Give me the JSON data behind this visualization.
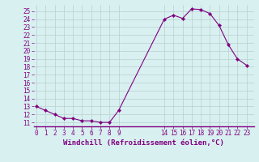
{
  "x": [
    0,
    1,
    2,
    3,
    4,
    5,
    6,
    7,
    8,
    9,
    14,
    15,
    16,
    17,
    18,
    19,
    20,
    21,
    22,
    23
  ],
  "y": [
    13,
    12.5,
    12,
    11.5,
    11.5,
    11.2,
    11.2,
    11.0,
    11.0,
    12.5,
    24.0,
    24.5,
    24.1,
    25.3,
    25.2,
    24.7,
    23.2,
    20.8,
    19.0,
    18.2
  ],
  "line_color": "#800080",
  "marker_color": "#800080",
  "bg_color": "#d8f0f0",
  "grid_color": "#b8d0d0",
  "xlabel": "Windchill (Refroidissement éolien,°C)",
  "xlabel_color": "#800080",
  "ylim": [
    10.5,
    25.8
  ],
  "yticks": [
    11,
    12,
    13,
    14,
    15,
    16,
    17,
    18,
    19,
    20,
    21,
    22,
    23,
    24,
    25
  ],
  "xticks": [
    0,
    1,
    2,
    3,
    4,
    5,
    6,
    7,
    8,
    9,
    14,
    15,
    16,
    17,
    18,
    19,
    20,
    21,
    22,
    23
  ],
  "xlim": [
    -0.3,
    23.8
  ],
  "tick_fontsize": 5.5,
  "xlabel_fontsize": 6.5,
  "line_width": 0.8,
  "marker_size": 2.2
}
